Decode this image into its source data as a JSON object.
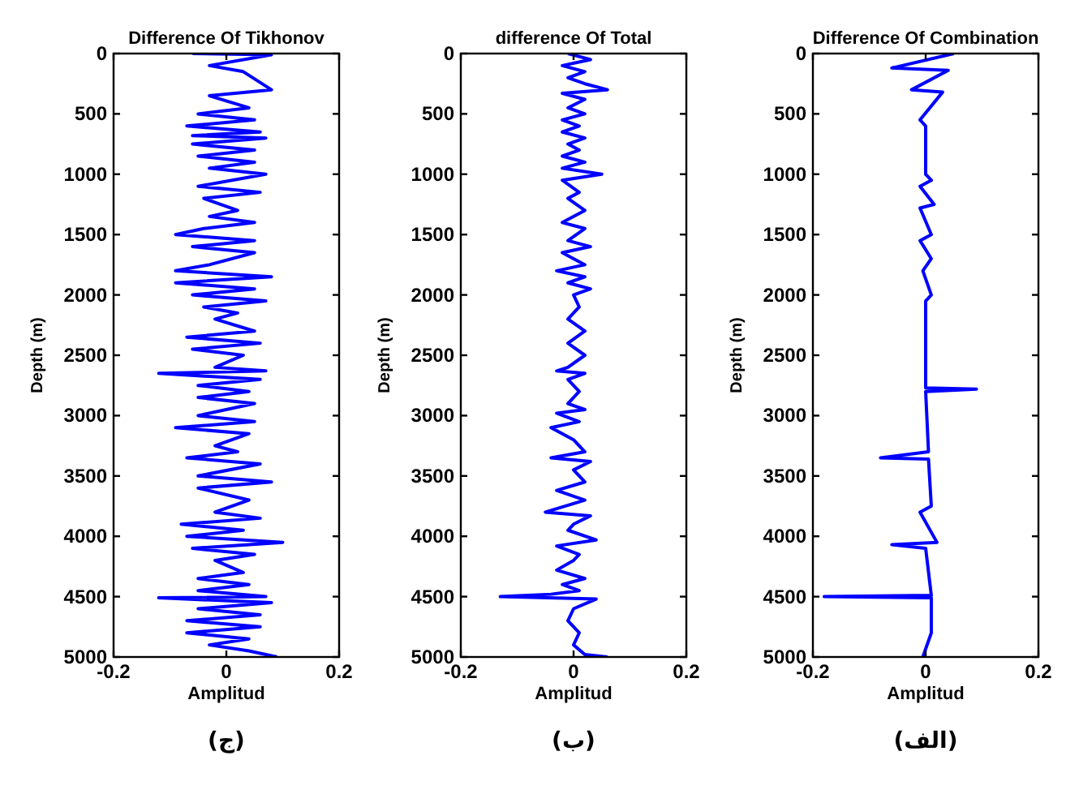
{
  "chart_data": [
    {
      "type": "line",
      "title": "Difference Of Tikhonov",
      "xlabel": "Amplitud",
      "ylabel": "Depth (m)",
      "xlim": [
        -0.2,
        0.2
      ],
      "xticks": [
        -0.2,
        0,
        0.2
      ],
      "ylim": [
        5000,
        0
      ],
      "yticks": [
        0,
        500,
        1000,
        1500,
        2000,
        2500,
        3000,
        3500,
        4000,
        4500,
        5000
      ],
      "annotations": [
        "(ج)"
      ],
      "series": [
        {
          "color": "#0000ff",
          "x": [
            -0.06,
            0.08,
            -0.03,
            0.03,
            0.08,
            -0.03,
            0.04,
            -0.05,
            0.05,
            -0.07,
            0.06,
            -0.06,
            0.07,
            -0.06,
            0.05,
            -0.05,
            0.05,
            -0.03,
            0.07,
            -0.05,
            0.06,
            -0.04,
            0.02,
            -0.03,
            0.05,
            -0.04,
            -0.09,
            0.05,
            -0.06,
            0.05,
            -0.03,
            -0.09,
            0.08,
            -0.09,
            0.05,
            -0.06,
            0.07,
            -0.04,
            0.02,
            -0.02,
            0.05,
            -0.07,
            0.06,
            -0.06,
            0.03,
            -0.02,
            0.07,
            -0.12,
            0.06,
            -0.05,
            0.04,
            -0.05,
            0.05,
            -0.05,
            0.05,
            -0.09,
            0.04,
            -0.02,
            0.02,
            -0.07,
            0.06,
            -0.05,
            0.08,
            -0.05,
            0.04,
            -0.02,
            0.06,
            -0.08,
            0.03,
            -0.07,
            0.1,
            -0.06,
            0.05,
            -0.02,
            0.03,
            -0.05,
            0.04,
            -0.05,
            0.07,
            -0.12,
            0.08,
            -0.05,
            0.06,
            -0.07,
            0.06,
            -0.07,
            0.04,
            -0.03,
            0.04,
            0.09
          ],
          "values": [
            0,
            10,
            100,
            150,
            300,
            350,
            450,
            500,
            550,
            600,
            650,
            680,
            700,
            750,
            800,
            850,
            900,
            950,
            1000,
            1100,
            1150,
            1200,
            1300,
            1350,
            1400,
            1450,
            1500,
            1550,
            1600,
            1650,
            1750,
            1800,
            1850,
            1900,
            1950,
            2000,
            2050,
            2100,
            2150,
            2200,
            2300,
            2350,
            2400,
            2450,
            2500,
            2600,
            2630,
            2650,
            2700,
            2750,
            2800,
            2850,
            2900,
            3000,
            3050,
            3100,
            3150,
            3250,
            3300,
            3350,
            3400,
            3500,
            3550,
            3600,
            3700,
            3800,
            3850,
            3900,
            3950,
            4000,
            4050,
            4100,
            4150,
            4200,
            4300,
            4350,
            4400,
            4450,
            4500,
            4510,
            4550,
            4600,
            4650,
            4700,
            4750,
            4800,
            4850,
            4900,
            4950,
            5000
          ]
        }
      ]
    },
    {
      "type": "line",
      "title": "difference Of Total",
      "xlabel": "Amplitud",
      "ylabel": "Depth (m)",
      "xlim": [
        -0.2,
        0.2
      ],
      "xticks": [
        -0.2,
        0,
        0.2
      ],
      "ylim": [
        5000,
        0
      ],
      "yticks": [
        0,
        500,
        1000,
        1500,
        2000,
        2500,
        3000,
        3500,
        4000,
        4500,
        5000
      ],
      "annotations": [
        "(ب)"
      ],
      "series": [
        {
          "color": "#0000ff",
          "x": [
            -0.01,
            0.03,
            -0.02,
            0.02,
            -0.01,
            0.02,
            0.06,
            -0.02,
            0.02,
            -0.01,
            0.02,
            -0.02,
            0.01,
            -0.02,
            0.02,
            -0.01,
            0.01,
            -0.02,
            0.02,
            -0.02,
            0.05,
            -0.02,
            0.01,
            -0.01,
            0.02,
            -0.02,
            0.02,
            -0.01,
            0.03,
            -0.02,
            0.02,
            -0.03,
            0.02,
            -0.01,
            0.03,
            0,
            0.01,
            -0.01,
            0.02,
            -0.01,
            0.02,
            -0.01,
            -0.03,
            0.02,
            -0.01,
            0.01,
            -0.01,
            0.02,
            -0.03,
            0.01,
            -0.04,
            0,
            0.02,
            -0.04,
            0.03,
            0,
            0.02,
            -0.03,
            0.02,
            -0.05,
            0.03,
            0,
            -0.01,
            0.04,
            -0.03,
            0.01,
            0,
            -0.03,
            0.02,
            -0.02,
            0.01,
            -0.04,
            -0.13,
            0.04,
            0,
            -0.01,
            0.01,
            0,
            0.02,
            0.06
          ],
          "values": [
            0,
            50,
            100,
            150,
            200,
            250,
            300,
            330,
            380,
            450,
            500,
            550,
            600,
            650,
            700,
            750,
            800,
            850,
            900,
            950,
            1000,
            1050,
            1150,
            1200,
            1300,
            1400,
            1450,
            1550,
            1600,
            1650,
            1750,
            1800,
            1850,
            1900,
            1950,
            2000,
            2100,
            2200,
            2300,
            2400,
            2500,
            2600,
            2630,
            2650,
            2700,
            2800,
            2900,
            2950,
            2980,
            3050,
            3100,
            3200,
            3300,
            3350,
            3380,
            3450,
            3550,
            3620,
            3700,
            3800,
            3830,
            3900,
            3950,
            4030,
            4080,
            4150,
            4200,
            4280,
            4350,
            4400,
            4450,
            4480,
            4500,
            4520,
            4600,
            4700,
            4800,
            4900,
            4980,
            5000
          ]
        }
      ]
    },
    {
      "type": "line",
      "title": "Difference Of Combination",
      "xlabel": "Amplitud",
      "ylabel": "Depth (m)",
      "xlim": [
        -0.2,
        0.2
      ],
      "xticks": [
        -0.2,
        0,
        0.2
      ],
      "ylim": [
        5000,
        0
      ],
      "yticks": [
        0,
        500,
        1000,
        1500,
        2000,
        2500,
        3000,
        3500,
        4000,
        4500,
        5000
      ],
      "annotations": [
        "(الف)"
      ],
      "series": [
        {
          "color": "#0000ff",
          "x": [
            0.05,
            -0.06,
            0.04,
            -0.025,
            0.03,
            -0.01,
            0,
            0,
            0.01,
            -0.01,
            0.015,
            -0.01,
            0.01,
            -0.01,
            0.01,
            -0.005,
            0.01,
            0,
            0,
            0.09,
            0,
            0.005,
            -0.08,
            0.005,
            0.01,
            -0.01,
            0.02,
            -0.06,
            0,
            0.01,
            -0.18,
            0.01,
            0.01,
            -0.005
          ],
          "values": [
            0,
            120,
            140,
            300,
            320,
            550,
            600,
            1000,
            1050,
            1100,
            1250,
            1280,
            1500,
            1550,
            1700,
            1800,
            2000,
            2050,
            2770,
            2780,
            2800,
            3300,
            3350,
            3360,
            3750,
            3800,
            4050,
            4070,
            4100,
            4490,
            4500,
            4510,
            4800,
            5000
          ]
        }
      ]
    }
  ]
}
